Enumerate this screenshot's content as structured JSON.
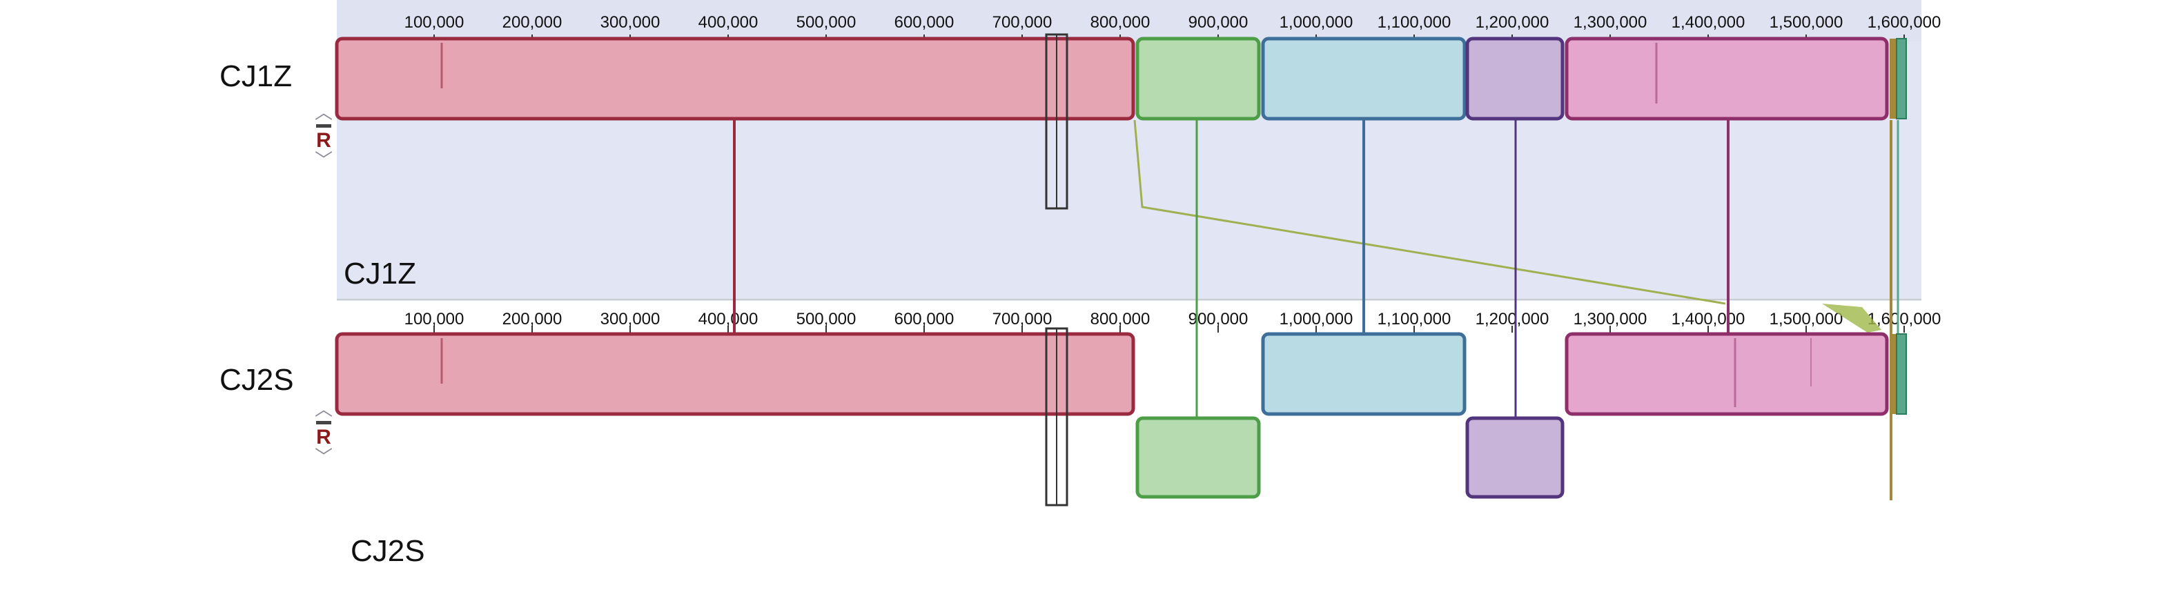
{
  "genomes": [
    {
      "name": "CJ1Z",
      "panel_label": "CJ1Z"
    },
    {
      "name": "CJ2S",
      "panel_label": "CJ2S"
    }
  ],
  "controls": {
    "up": "︿",
    "remove": "—",
    "reverse": "R",
    "down": "﹀"
  },
  "ruler": {
    "ticks": [
      "100,000",
      "200,000",
      "300,000",
      "400,000",
      "500,000",
      "600,000",
      "700,000",
      "800,000",
      "900,000",
      "1,000,000",
      "1,100,000",
      "1,200,000",
      "1,300,000",
      "1,400,000",
      "1,500,000",
      "1,600,000"
    ]
  },
  "colors": {
    "track_bg": "#e1e5f4",
    "red": "#e6a5b2",
    "red_border": "#9a2a40",
    "green": "#b6dbb0",
    "green_border": "#4e9e48",
    "blue": "#b9dbe3",
    "blue_border": "#3d6f9a",
    "purple": "#c7b4d8",
    "purple_border": "#53357d",
    "pink": "#e4a6cc",
    "pink_border": "#8e2f6a",
    "teal": "#5aa88c"
  }
}
